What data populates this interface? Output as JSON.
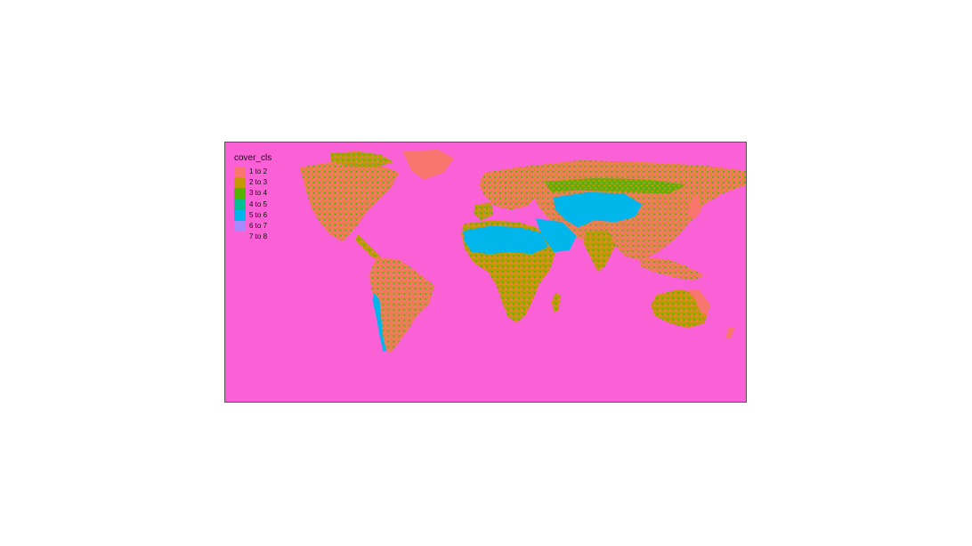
{
  "map": {
    "legend": {
      "title": "cover_cls",
      "items": [
        {
          "label": "1 to 2",
          "color": "#F8766D"
        },
        {
          "label": "2 to 3",
          "color": "#C49A00"
        },
        {
          "label": "3 to 4",
          "color": "#53B400"
        },
        {
          "label": "4 to 5",
          "color": "#00C094"
        },
        {
          "label": "5 to 6",
          "color": "#00B6EB"
        },
        {
          "label": "6 to 7",
          "color": "#A58AFF"
        },
        {
          "label": "7 to 8",
          "color": "#FB61D7"
        }
      ]
    }
  }
}
